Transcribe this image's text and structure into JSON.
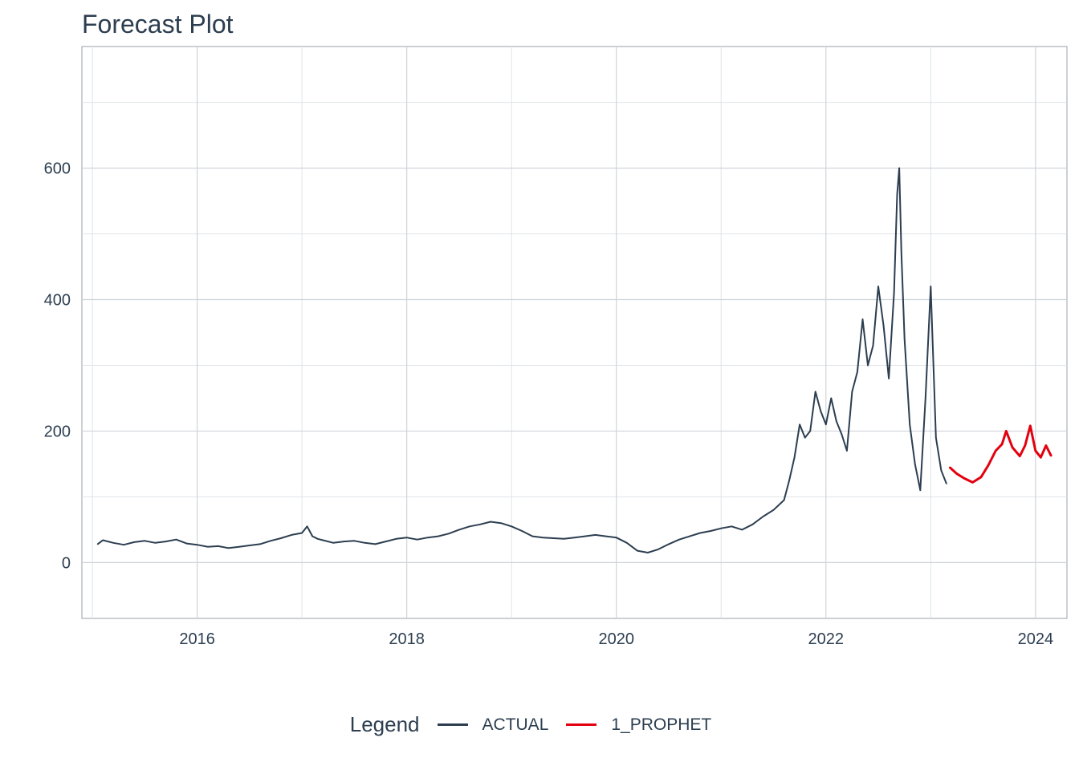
{
  "chart_data": {
    "type": "line",
    "title": "Forecast Plot",
    "xlabel": "",
    "ylabel": "",
    "xlim": [
      2014.9,
      2024.3
    ],
    "ylim": [
      -85,
      785
    ],
    "x_ticks": [
      2016,
      2018,
      2020,
      2022,
      2024
    ],
    "x_tick_labels": [
      "2016",
      "2018",
      "2020",
      "2022",
      "2024"
    ],
    "y_ticks": [
      0,
      200,
      400,
      600
    ],
    "y_tick_labels": [
      "0",
      "200",
      "400",
      "600"
    ],
    "grid": true,
    "legend": {
      "title": "Legend",
      "position": "bottom"
    },
    "series": [
      {
        "name": "ACTUAL",
        "color": "#2c3e50",
        "x": [
          2015.05,
          2015.1,
          2015.2,
          2015.3,
          2015.4,
          2015.5,
          2015.6,
          2015.7,
          2015.8,
          2015.9,
          2016.0,
          2016.1,
          2016.2,
          2016.3,
          2016.4,
          2016.5,
          2016.6,
          2016.7,
          2016.8,
          2016.9,
          2017.0,
          2017.05,
          2017.1,
          2017.15,
          2017.2,
          2017.3,
          2017.4,
          2017.5,
          2017.6,
          2017.7,
          2017.8,
          2017.9,
          2018.0,
          2018.1,
          2018.2,
          2018.3,
          2018.4,
          2018.5,
          2018.6,
          2018.7,
          2018.8,
          2018.9,
          2019.0,
          2019.1,
          2019.2,
          2019.3,
          2019.4,
          2019.5,
          2019.6,
          2019.7,
          2019.8,
          2019.9,
          2020.0,
          2020.1,
          2020.2,
          2020.3,
          2020.4,
          2020.5,
          2020.6,
          2020.7,
          2020.8,
          2020.9,
          2021.0,
          2021.1,
          2021.2,
          2021.3,
          2021.4,
          2021.5,
          2021.6,
          2021.65,
          2021.7,
          2021.75,
          2021.8,
          2021.85,
          2021.9,
          2021.95,
          2022.0,
          2022.05,
          2022.1,
          2022.15,
          2022.2,
          2022.25,
          2022.3,
          2022.35,
          2022.4,
          2022.45,
          2022.5,
          2022.55,
          2022.6,
          2022.65,
          2022.68,
          2022.7,
          2022.72,
          2022.75,
          2022.8,
          2022.85,
          2022.9,
          2022.95,
          2023.0,
          2023.05,
          2023.1,
          2023.15
        ],
        "values": [
          28,
          34,
          30,
          27,
          31,
          33,
          30,
          32,
          35,
          29,
          27,
          24,
          25,
          22,
          24,
          26,
          28,
          33,
          37,
          42,
          45,
          55,
          40,
          36,
          34,
          30,
          32,
          33,
          30,
          28,
          32,
          36,
          38,
          35,
          38,
          40,
          44,
          50,
          55,
          58,
          62,
          60,
          55,
          48,
          40,
          38,
          37,
          36,
          38,
          40,
          42,
          40,
          38,
          30,
          18,
          15,
          20,
          28,
          35,
          40,
          45,
          48,
          52,
          55,
          50,
          58,
          70,
          80,
          95,
          125,
          160,
          210,
          190,
          200,
          260,
          230,
          210,
          250,
          215,
          195,
          170,
          260,
          290,
          370,
          300,
          330,
          420,
          360,
          280,
          410,
          560,
          600,
          470,
          340,
          210,
          150,
          110,
          250,
          420,
          190,
          140,
          120
        ]
      },
      {
        "name": "1_PROPHET",
        "color": "#e3000f",
        "x": [
          2023.18,
          2023.25,
          2023.32,
          2023.4,
          2023.48,
          2023.55,
          2023.62,
          2023.68,
          2023.72,
          2023.78,
          2023.85,
          2023.9,
          2023.95,
          2024.0,
          2024.05,
          2024.1,
          2024.15
        ],
        "values": [
          145,
          135,
          128,
          122,
          130,
          148,
          170,
          180,
          200,
          175,
          162,
          178,
          208,
          170,
          160,
          178,
          162
        ]
      }
    ]
  }
}
